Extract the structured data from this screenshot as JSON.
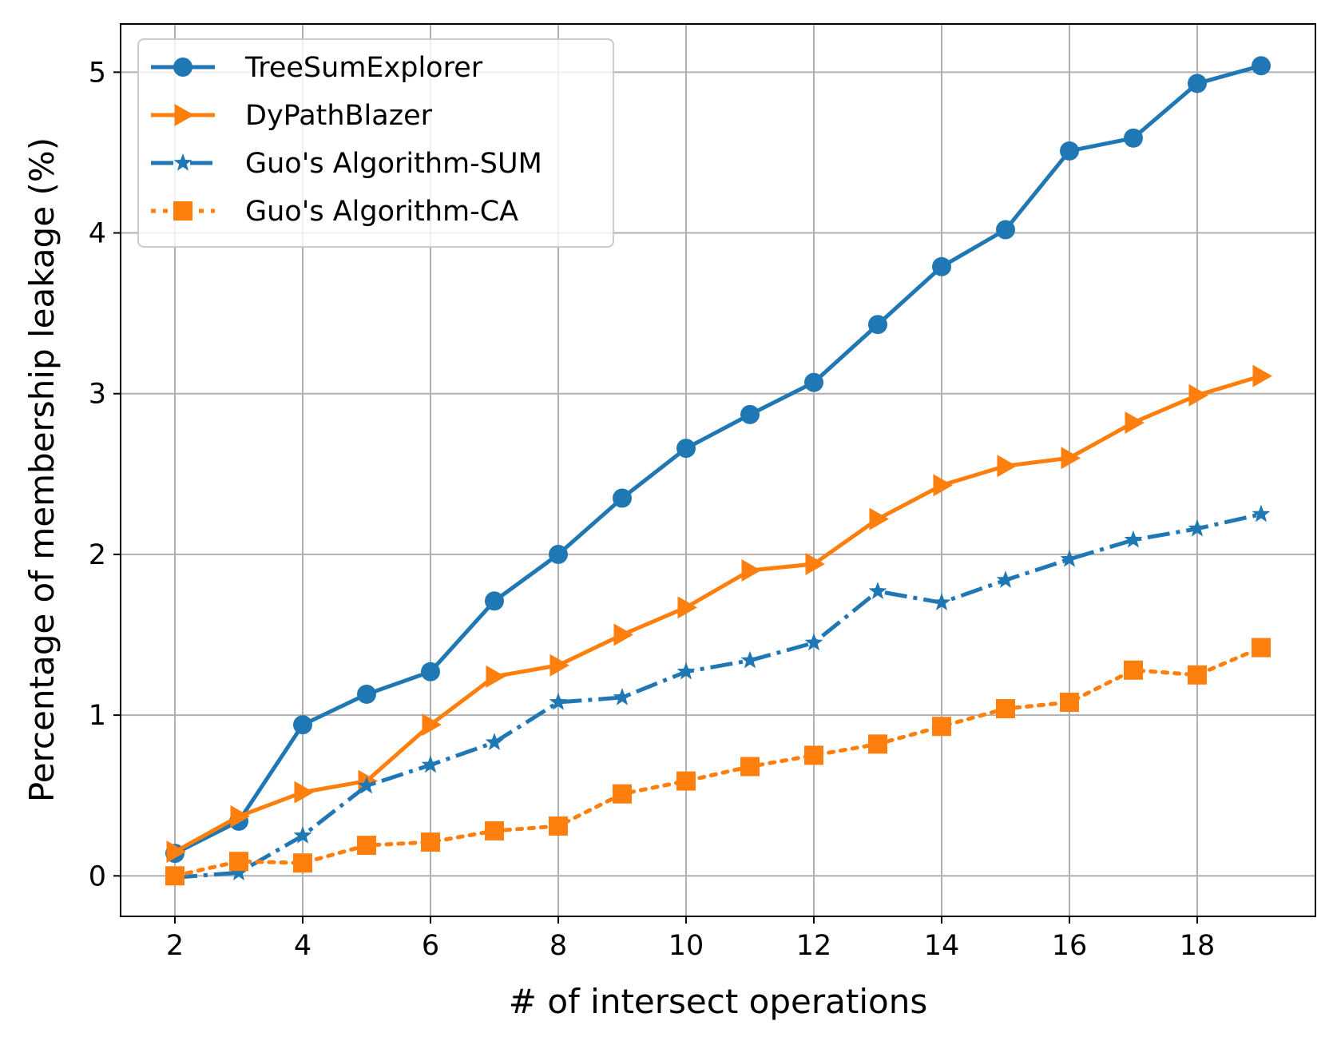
{
  "chart_data": {
    "type": "line",
    "title": "",
    "xlabel": "# of intersect operations",
    "ylabel": "Percentage of membership leakage (%)",
    "xlim": [
      1.15,
      19.85
    ],
    "ylim": [
      -0.252,
      5.3
    ],
    "xticks": [
      2,
      4,
      6,
      8,
      10,
      12,
      14,
      16,
      18
    ],
    "xtick_labels": [
      "2",
      "4",
      "6",
      "8",
      "10",
      "12",
      "14",
      "16",
      "18"
    ],
    "yticks": [
      0,
      1,
      2,
      3,
      4,
      5
    ],
    "ytick_labels": [
      "0",
      "1",
      "2",
      "3",
      "4",
      "5"
    ],
    "grid": true,
    "legend_position": "upper left",
    "x": [
      2,
      3,
      4,
      5,
      6,
      7,
      8,
      9,
      10,
      11,
      12,
      13,
      14,
      15,
      16,
      17,
      18,
      19
    ],
    "series": [
      {
        "name": "TreeSumExplorer",
        "color": "#1f77b4",
        "marker": "circle",
        "linestyle": "solid",
        "values": [
          0.14,
          0.34,
          0.94,
          1.13,
          1.27,
          1.71,
          2.0,
          2.35,
          2.66,
          2.87,
          3.07,
          3.43,
          3.79,
          4.02,
          4.51,
          4.59,
          4.93,
          5.04
        ]
      },
      {
        "name": "DyPathBlazer",
        "color": "#ff7f0e",
        "marker": "triangle-right",
        "linestyle": "solid",
        "values": [
          0.15,
          0.37,
          0.52,
          0.59,
          0.94,
          1.24,
          1.31,
          1.5,
          1.67,
          1.9,
          1.94,
          2.22,
          2.43,
          2.55,
          2.6,
          2.82,
          2.99,
          3.11
        ]
      },
      {
        "name": "Guo's Algorithm-SUM",
        "color": "#1f77b4",
        "marker": "star",
        "linestyle": "dashdot",
        "values": [
          -0.01,
          0.02,
          0.25,
          0.56,
          0.69,
          0.83,
          1.08,
          1.11,
          1.27,
          1.34,
          1.45,
          1.77,
          1.7,
          1.84,
          1.97,
          2.09,
          2.16,
          2.25
        ]
      },
      {
        "name": "Guo's Algorithm-CA",
        "color": "#ff7f0e",
        "marker": "square",
        "linestyle": "dotted",
        "values": [
          0.0,
          0.09,
          0.08,
          0.19,
          0.21,
          0.28,
          0.31,
          0.51,
          0.59,
          0.68,
          0.75,
          0.82,
          0.93,
          1.04,
          1.08,
          1.28,
          1.25,
          1.42
        ]
      }
    ]
  }
}
